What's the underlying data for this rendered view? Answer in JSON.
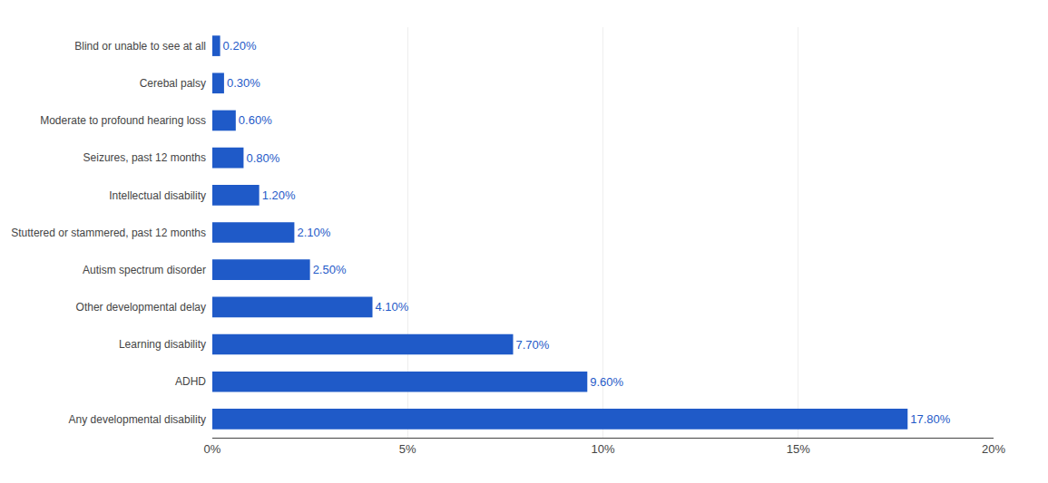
{
  "chart_data": {
    "type": "bar",
    "orientation": "horizontal",
    "categories": [
      "Blind or unable to see at all",
      "Cerebal palsy",
      "Moderate to profound hearing loss",
      "Seizures, past 12 months",
      "Intellectual disability",
      "Stuttered or stammered, past 12 months",
      "Autism spectrum disorder",
      "Other developmental delay",
      "Learning disability",
      "ADHD",
      "Any developmental disability"
    ],
    "values": [
      0.2,
      0.3,
      0.6,
      0.8,
      1.2,
      2.1,
      2.5,
      4.1,
      7.7,
      9.6,
      17.8
    ],
    "value_labels": [
      "0.20%",
      "0.30%",
      "0.60%",
      "0.80%",
      "1.20%",
      "2.10%",
      "2.50%",
      "4.10%",
      "7.70%",
      "9.60%",
      "17.80%"
    ],
    "data_labels": true,
    "color": "#1f5ac8",
    "xlim": [
      0,
      20
    ],
    "xticks": [
      {
        "value": 0,
        "label": "0%"
      },
      {
        "value": 5,
        "label": "5%"
      },
      {
        "value": 10,
        "label": "10%"
      },
      {
        "value": 15,
        "label": "15%"
      },
      {
        "value": 20,
        "label": "20%"
      }
    ],
    "grid": true
  }
}
